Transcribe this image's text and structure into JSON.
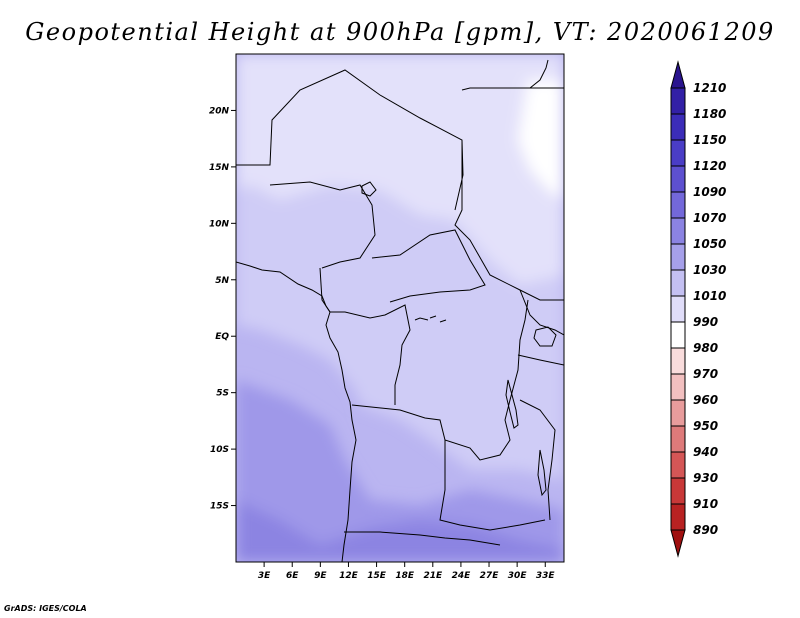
{
  "title": "Geopotential Height at 900hPa [gpm], VT: 2020061209",
  "credit": "GrADS: IGES/COLA",
  "map": {
    "lon_range": [
      0,
      35
    ],
    "lat_range": [
      -20,
      25
    ],
    "lat_ticks": [
      {
        "value": 20,
        "label": "20N"
      },
      {
        "value": 15,
        "label": "15N"
      },
      {
        "value": 10,
        "label": "10N"
      },
      {
        "value": 5,
        "label": "5N"
      },
      {
        "value": 0,
        "label": "EQ"
      },
      {
        "value": -5,
        "label": "5S"
      },
      {
        "value": -10,
        "label": "10S"
      },
      {
        "value": -15,
        "label": "15S"
      }
    ],
    "lon_ticks": [
      {
        "value": 3,
        "label": "3E"
      },
      {
        "value": 6,
        "label": "6E"
      },
      {
        "value": 9,
        "label": "9E"
      },
      {
        "value": 12,
        "label": "12E"
      },
      {
        "value": 15,
        "label": "15E"
      },
      {
        "value": 18,
        "label": "18E"
      },
      {
        "value": 21,
        "label": "21E"
      },
      {
        "value": 24,
        "label": "24E"
      },
      {
        "value": 27,
        "label": "27E"
      },
      {
        "value": 30,
        "label": "30E"
      },
      {
        "value": 33,
        "label": "33E"
      }
    ]
  },
  "colorbar": {
    "labels": [
      "1210",
      "1180",
      "1150",
      "1120",
      "1090",
      "1070",
      "1050",
      "1030",
      "1010",
      "990",
      "980",
      "970",
      "960",
      "950",
      "940",
      "930",
      "910",
      "890"
    ],
    "colors": [
      "#2a148e",
      "#3220a6",
      "#3b2cb8",
      "#4a3dc6",
      "#5d50d0",
      "#7368da",
      "#8b83e2",
      "#a6a0ea",
      "#c4c0f2",
      "#e0ddf9",
      "#ffffff",
      "#f9dcdc",
      "#f2c0c0",
      "#e89c9c",
      "#de7a7a",
      "#d45656",
      "#c83838",
      "#b82222",
      "#a01010"
    ]
  },
  "chart_data": {
    "type": "heatmap",
    "title": "Geopotential Height at 900hPa [gpm], VT: 2020061209",
    "variable": "Geopotential Height at 900hPa",
    "units": "gpm",
    "valid_time": "2020061209",
    "contour_levels": [
      890,
      910,
      930,
      940,
      950,
      960,
      970,
      980,
      990,
      1010,
      1030,
      1050,
      1070,
      1090,
      1120,
      1150,
      1180,
      1210
    ],
    "x_ticks": [
      "3E",
      "6E",
      "9E",
      "12E",
      "15E",
      "18E",
      "21E",
      "24E",
      "27E",
      "30E",
      "33E"
    ],
    "y_ticks": [
      "20N",
      "15N",
      "10N",
      "5N",
      "EQ",
      "5S",
      "10S",
      "15S"
    ],
    "approx_field_range_gpm": [
      1000,
      1090
    ]
  }
}
